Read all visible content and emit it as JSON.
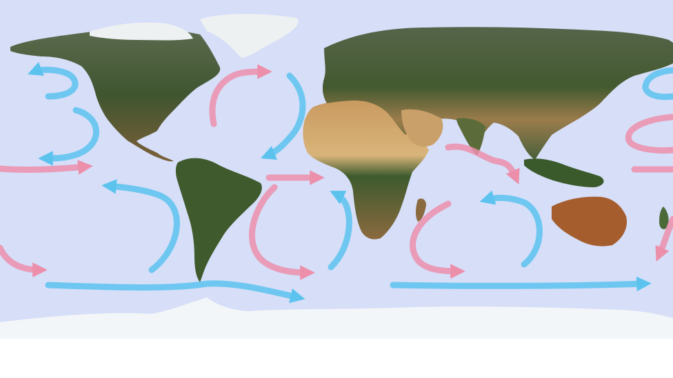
{
  "map": {
    "colors": {
      "ocean": "#d6def8",
      "antarctica": "#f3f6f8",
      "below_map": "#ffffff",
      "warm_current": "#ec8fab",
      "cold_current": "#5cc3ee",
      "land_green": "#3f5530",
      "land_brown": "#8a6a3e",
      "land_desert": "#d8b47c",
      "ice": "#eef1f2"
    },
    "current_types": [
      "warm",
      "cold"
    ]
  }
}
